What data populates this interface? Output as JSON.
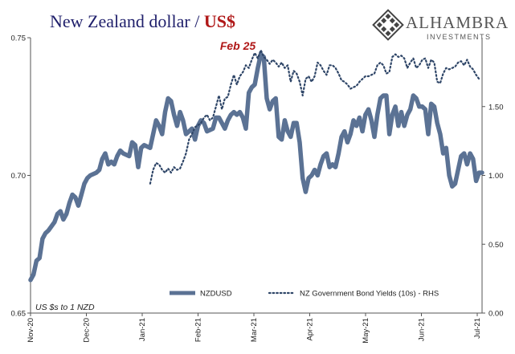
{
  "title": {
    "main": "New Zealand dollar",
    "sep": " / ",
    "highlight": "US$"
  },
  "logo": {
    "brand": "ALHAMBRA",
    "sub": "INVESTMENTS",
    "icon": "diamond-grid-icon"
  },
  "colors": {
    "nzdusd": "#5b7294",
    "bond": "#2f4668",
    "highlight": "#b01818",
    "title": "#1f1f6b"
  },
  "chart_data": {
    "type": "line",
    "x_labels": [
      "Nov-20",
      "Dec-20",
      "Jan-21",
      "Feb-21",
      "Mar-21",
      "Apr-21",
      "May-21",
      "Jun-21",
      "Jul-21"
    ],
    "y_left": {
      "range": [
        0.65,
        0.75
      ],
      "ticks": [
        "0.65",
        "0.70",
        "0.75"
      ]
    },
    "y_right": {
      "range": [
        0.0,
        2.0
      ],
      "ticks": [
        "0.00",
        "0.50",
        "1.00",
        "1.50"
      ]
    },
    "annotation": "Feb 25",
    "note": "US $s to 1 NZD",
    "legend": {
      "placement": "bottom-center"
    },
    "series": [
      {
        "name": "NZDUSD",
        "style": "solid-thick",
        "axis": "left",
        "points": [
          [
            0,
            0.662
          ],
          [
            1,
            0.664
          ],
          [
            2,
            0.669
          ],
          [
            3,
            0.67
          ],
          [
            4,
            0.677
          ],
          [
            5,
            0.679
          ],
          [
            6,
            0.68
          ],
          [
            8,
            0.683
          ],
          [
            9,
            0.686
          ],
          [
            10,
            0.687
          ],
          [
            11,
            0.684
          ],
          [
            12,
            0.686
          ],
          [
            13,
            0.69
          ],
          [
            14,
            0.693
          ],
          [
            15,
            0.692
          ],
          [
            16,
            0.689
          ],
          [
            17,
            0.693
          ],
          [
            18,
            0.697
          ],
          [
            19,
            0.699
          ],
          [
            20,
            0.7
          ],
          [
            22,
            0.701
          ],
          [
            23,
            0.702
          ],
          [
            24,
            0.706
          ],
          [
            25,
            0.708
          ],
          [
            26,
            0.704
          ],
          [
            27,
            0.705
          ],
          [
            28,
            0.704
          ],
          [
            29,
            0.707
          ],
          [
            30,
            0.709
          ],
          [
            31,
            0.708
          ],
          [
            33,
            0.707
          ],
          [
            34,
            0.712
          ],
          [
            35,
            0.711
          ],
          [
            36,
            0.703
          ],
          [
            37,
            0.71
          ],
          [
            38,
            0.711
          ],
          [
            40,
            0.71
          ],
          [
            41,
            0.715
          ],
          [
            42,
            0.72
          ],
          [
            43,
            0.718
          ],
          [
            44,
            0.715
          ],
          [
            45,
            0.723
          ],
          [
            46,
            0.728
          ],
          [
            47,
            0.727
          ],
          [
            48,
            0.722
          ],
          [
            49,
            0.718
          ],
          [
            50,
            0.723
          ],
          [
            51,
            0.72
          ],
          [
            52,
            0.715
          ],
          [
            54,
            0.717
          ],
          [
            55,
            0.713
          ],
          [
            56,
            0.718
          ],
          [
            57,
            0.72
          ],
          [
            58,
            0.719
          ],
          [
            59,
            0.716
          ],
          [
            61,
            0.717
          ],
          [
            62,
            0.721
          ],
          [
            63,
            0.721
          ],
          [
            64,
            0.719
          ],
          [
            65,
            0.717
          ],
          [
            66,
            0.72
          ],
          [
            67,
            0.722
          ],
          [
            68,
            0.723
          ],
          [
            69,
            0.722
          ],
          [
            70,
            0.723
          ],
          [
            71,
            0.721
          ],
          [
            72,
            0.717
          ],
          [
            73,
            0.73
          ],
          [
            74,
            0.732
          ],
          [
            75,
            0.733
          ],
          [
            76,
            0.739
          ],
          [
            77,
            0.744
          ],
          [
            78,
            0.743
          ],
          [
            79,
            0.728
          ],
          [
            80,
            0.724
          ],
          [
            81,
            0.727
          ],
          [
            82,
            0.728
          ],
          [
            83,
            0.714
          ],
          [
            84,
            0.713
          ],
          [
            85,
            0.72
          ],
          [
            86,
            0.716
          ],
          [
            87,
            0.714
          ],
          [
            88,
            0.719
          ],
          [
            89,
            0.719
          ],
          [
            90,
            0.712
          ],
          [
            91,
            0.699
          ],
          [
            92,
            0.694
          ],
          [
            93,
            0.699
          ],
          [
            94,
            0.7
          ],
          [
            95,
            0.702
          ],
          [
            96,
            0.7
          ],
          [
            97,
            0.704
          ],
          [
            98,
            0.707
          ],
          [
            99,
            0.708
          ],
          [
            100,
            0.703
          ],
          [
            101,
            0.704
          ],
          [
            102,
            0.703
          ],
          [
            103,
            0.708
          ],
          [
            104,
            0.714
          ],
          [
            105,
            0.716
          ],
          [
            106,
            0.712
          ],
          [
            107,
            0.715
          ],
          [
            108,
            0.72
          ],
          [
            109,
            0.718
          ],
          [
            110,
            0.721
          ],
          [
            111,
            0.716
          ],
          [
            112,
            0.722
          ],
          [
            113,
            0.724
          ],
          [
            114,
            0.72
          ],
          [
            115,
            0.714
          ],
          [
            116,
            0.722
          ],
          [
            117,
            0.728
          ],
          [
            118,
            0.729
          ],
          [
            119,
            0.729
          ],
          [
            120,
            0.715
          ],
          [
            121,
            0.722
          ],
          [
            122,
            0.725
          ],
          [
            123,
            0.718
          ],
          [
            124,
            0.723
          ],
          [
            125,
            0.718
          ],
          [
            126,
            0.722
          ],
          [
            127,
            0.724
          ],
          [
            128,
            0.729
          ],
          [
            129,
            0.728
          ],
          [
            130,
            0.725
          ],
          [
            131,
            0.725
          ],
          [
            132,
            0.724
          ],
          [
            133,
            0.715
          ],
          [
            134,
            0.726
          ],
          [
            135,
            0.725
          ],
          [
            136,
            0.719
          ],
          [
            137,
            0.715
          ],
          [
            138,
            0.708
          ],
          [
            139,
            0.71
          ],
          [
            140,
            0.7
          ],
          [
            141,
            0.696
          ],
          [
            142,
            0.697
          ],
          [
            143,
            0.702
          ],
          [
            144,
            0.707
          ],
          [
            145,
            0.708
          ],
          [
            146,
            0.704
          ],
          [
            147,
            0.708
          ],
          [
            148,
            0.706
          ],
          [
            149,
            0.698
          ],
          [
            150,
            0.701
          ],
          [
            151,
            0.701
          ]
        ]
      },
      {
        "name": "NZ Government Bond Yields (10s) - RHS",
        "style": "dotted",
        "axis": "right",
        "points": [
          [
            40,
            0.94
          ],
          [
            41,
            1.04
          ],
          [
            42,
            1.09
          ],
          [
            43,
            1.08
          ],
          [
            44,
            1.04
          ],
          [
            45,
            1.02
          ],
          [
            46,
            1.05
          ],
          [
            47,
            1.02
          ],
          [
            48,
            1.06
          ],
          [
            49,
            1.04
          ],
          [
            50,
            1.05
          ],
          [
            51,
            1.1
          ],
          [
            52,
            1.16
          ],
          [
            53,
            1.26
          ],
          [
            54,
            1.3
          ],
          [
            55,
            1.35
          ],
          [
            57,
            1.38
          ],
          [
            58,
            1.42
          ],
          [
            59,
            1.44
          ],
          [
            60,
            1.4
          ],
          [
            61,
            1.42
          ],
          [
            62,
            1.5
          ],
          [
            63,
            1.58
          ],
          [
            64,
            1.48
          ],
          [
            65,
            1.56
          ],
          [
            66,
            1.57
          ],
          [
            67,
            1.66
          ],
          [
            68,
            1.73
          ],
          [
            69,
            1.66
          ],
          [
            70,
            1.72
          ],
          [
            71,
            1.75
          ],
          [
            72,
            1.8
          ],
          [
            73,
            1.78
          ],
          [
            74,
            1.84
          ],
          [
            75,
            1.89
          ],
          [
            76,
            1.85
          ],
          [
            77,
            1.91
          ],
          [
            78,
            1.86
          ],
          [
            79,
            1.84
          ],
          [
            80,
            1.81
          ],
          [
            81,
            1.84
          ],
          [
            82,
            1.82
          ],
          [
            83,
            1.79
          ],
          [
            84,
            1.82
          ],
          [
            85,
            1.78
          ],
          [
            86,
            1.8
          ],
          [
            87,
            1.68
          ],
          [
            88,
            1.76
          ],
          [
            89,
            1.74
          ],
          [
            90,
            1.68
          ],
          [
            91,
            1.58
          ],
          [
            92,
            1.7
          ],
          [
            93,
            1.72
          ],
          [
            94,
            1.68
          ],
          [
            95,
            1.72
          ],
          [
            96,
            1.82
          ],
          [
            97,
            1.8
          ],
          [
            98,
            1.76
          ],
          [
            99,
            1.73
          ],
          [
            100,
            1.8
          ],
          [
            101,
            1.8
          ],
          [
            102,
            1.78
          ],
          [
            103,
            1.74
          ],
          [
            104,
            1.69
          ],
          [
            105,
            1.68
          ],
          [
            106,
            1.66
          ],
          [
            107,
            1.63
          ],
          [
            108,
            1.64
          ],
          [
            109,
            1.65
          ],
          [
            110,
            1.68
          ],
          [
            111,
            1.7
          ],
          [
            112,
            1.72
          ],
          [
            113,
            1.72
          ],
          [
            114,
            1.73
          ],
          [
            115,
            1.74
          ],
          [
            116,
            1.8
          ],
          [
            117,
            1.82
          ],
          [
            118,
            1.8
          ],
          [
            119,
            1.74
          ],
          [
            120,
            1.75
          ],
          [
            121,
            1.86
          ],
          [
            122,
            1.88
          ],
          [
            123,
            1.86
          ],
          [
            124,
            1.87
          ],
          [
            125,
            1.85
          ],
          [
            126,
            1.78
          ],
          [
            127,
            1.82
          ],
          [
            128,
            1.85
          ],
          [
            129,
            1.78
          ],
          [
            130,
            1.8
          ],
          [
            131,
            1.84
          ],
          [
            132,
            1.85
          ],
          [
            133,
            1.78
          ],
          [
            134,
            1.84
          ],
          [
            135,
            1.82
          ],
          [
            136,
            1.68
          ],
          [
            137,
            1.67
          ],
          [
            138,
            1.74
          ],
          [
            139,
            1.78
          ],
          [
            140,
            1.77
          ],
          [
            141,
            1.78
          ],
          [
            142,
            1.79
          ],
          [
            143,
            1.82
          ],
          [
            144,
            1.83
          ],
          [
            145,
            1.8
          ],
          [
            146,
            1.84
          ],
          [
            147,
            1.79
          ],
          [
            148,
            1.77
          ],
          [
            149,
            1.73
          ],
          [
            150,
            1.7
          ]
        ]
      }
    ]
  }
}
